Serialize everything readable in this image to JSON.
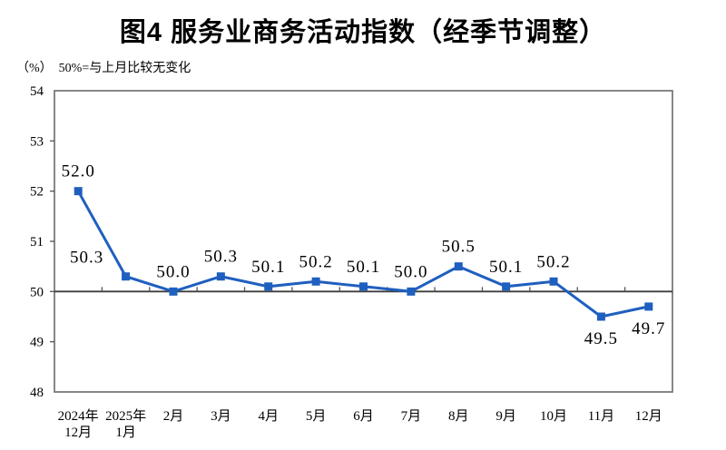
{
  "title": "图4 服务业商务活动指数（经季节调整）",
  "unit_label": "（%）",
  "subtitle": "50%=与上月比较无变化",
  "colors": {
    "line": "#1F5FBF",
    "plot_border": "#7a7a7a",
    "zero_line": "#3d3d3d",
    "tick": "#555555",
    "text": "#000000"
  },
  "chart_data": {
    "type": "line",
    "title": "图4 服务业商务活动指数（经季节调整）",
    "subtitle": "（%）50%=与上月比较无变化",
    "categories": [
      [
        "2024年",
        "12月"
      ],
      [
        "2025年",
        "1月"
      ],
      [
        "2月"
      ],
      [
        "3月"
      ],
      [
        "4月"
      ],
      [
        "5月"
      ],
      [
        "6月"
      ],
      [
        "7月"
      ],
      [
        "8月"
      ],
      [
        "9月"
      ],
      [
        "10月"
      ],
      [
        "11月"
      ],
      [
        "12月"
      ]
    ],
    "values": [
      52.0,
      50.3,
      50.0,
      50.3,
      50.1,
      50.2,
      50.1,
      50.0,
      50.5,
      50.1,
      50.2,
      49.5,
      49.7
    ],
    "point_labels": [
      "52.0",
      "50.3",
      "50.0",
      "50.3",
      "50.1",
      "50.2",
      "50.1",
      "50.0",
      "50.5",
      "50.1",
      "50.2",
      "49.5",
      "49.7"
    ],
    "label_positions": [
      "above",
      "above-left",
      "above",
      "above",
      "above",
      "above",
      "above",
      "above",
      "above",
      "above",
      "above",
      "below",
      "below"
    ],
    "ylim": [
      48,
      54
    ],
    "ytick_step": 1,
    "axis_cross_value": 50,
    "grid": false,
    "legend": "none",
    "marker": "square"
  }
}
